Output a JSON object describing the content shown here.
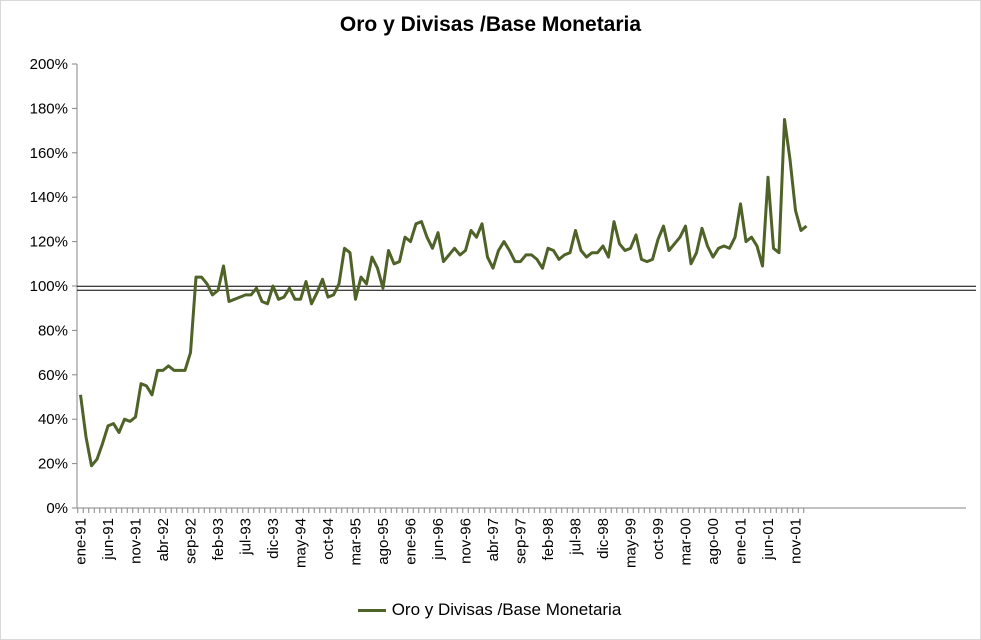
{
  "chart_data": {
    "type": "line",
    "title": "Oro y Divisas /Base Monetaria",
    "xlabel": "",
    "ylabel": "",
    "ylim": [
      0,
      2.0
    ],
    "y_ticks": [
      "0%",
      "20%",
      "40%",
      "60%",
      "80%",
      "100%",
      "120%",
      "140%",
      "160%",
      "180%",
      "200%"
    ],
    "x_tick_labels": [
      "ene-91",
      "jun-91",
      "nov-91",
      "abr-92",
      "sep-92",
      "feb-93",
      "jul-93",
      "dic-93",
      "may-94",
      "oct-94",
      "mar-95",
      "ago-95",
      "ene-96",
      "jun-96",
      "nov-96",
      "abr-97",
      "sep-97",
      "feb-98",
      "jul-98",
      "dic-98",
      "may-99",
      "oct-99",
      "mar-00",
      "ago-00",
      "ene-01",
      "jun-01",
      "nov-01"
    ],
    "reference_line": 0.99,
    "series_color": "#4f6228",
    "legend_position": "bottom",
    "grid": false,
    "series": [
      {
        "name": "Oro y Divisas /Base Monetaria",
        "start": "ene-91",
        "frequency": "monthly",
        "values": [
          0.51,
          0.32,
          0.19,
          0.22,
          0.29,
          0.37,
          0.38,
          0.34,
          0.4,
          0.39,
          0.41,
          0.56,
          0.55,
          0.51,
          0.62,
          0.62,
          0.64,
          0.62,
          0.62,
          0.62,
          0.7,
          1.04,
          1.04,
          1.01,
          0.96,
          0.98,
          1.09,
          0.93,
          0.94,
          0.95,
          0.96,
          0.96,
          0.99,
          0.93,
          0.92,
          1.0,
          0.94,
          0.95,
          0.99,
          0.94,
          0.94,
          1.02,
          0.92,
          0.97,
          1.03,
          0.95,
          0.96,
          1.01,
          1.17,
          1.15,
          0.94,
          1.04,
          1.01,
          1.13,
          1.08,
          0.99,
          1.16,
          1.1,
          1.11,
          1.22,
          1.2,
          1.28,
          1.29,
          1.22,
          1.17,
          1.24,
          1.11,
          1.14,
          1.17,
          1.14,
          1.16,
          1.25,
          1.22,
          1.28,
          1.13,
          1.08,
          1.16,
          1.2,
          1.16,
          1.11,
          1.11,
          1.14,
          1.14,
          1.12,
          1.08,
          1.17,
          1.16,
          1.12,
          1.14,
          1.15,
          1.25,
          1.16,
          1.13,
          1.15,
          1.15,
          1.18,
          1.13,
          1.29,
          1.19,
          1.16,
          1.17,
          1.23,
          1.12,
          1.11,
          1.12,
          1.21,
          1.27,
          1.16,
          1.19,
          1.22,
          1.27,
          1.1,
          1.15,
          1.26,
          1.18,
          1.13,
          1.17,
          1.18,
          1.17,
          1.22,
          1.37,
          1.2,
          1.22,
          1.18,
          1.09,
          1.49,
          1.17,
          1.15,
          1.75,
          1.57,
          1.34,
          1.25,
          1.27
        ]
      }
    ]
  }
}
